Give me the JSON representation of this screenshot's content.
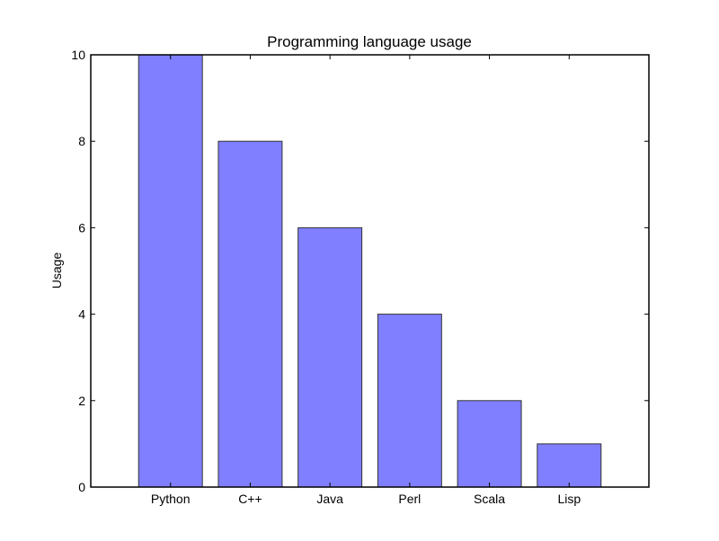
{
  "chart_data": {
    "type": "bar",
    "title": "Programming language usage",
    "xlabel": "",
    "ylabel": "Usage",
    "categories": [
      "Python",
      "C++",
      "Java",
      "Perl",
      "Scala",
      "Lisp"
    ],
    "values": [
      10,
      8,
      6,
      4,
      2,
      1
    ],
    "ylim": [
      0,
      10
    ],
    "yticks": [
      0,
      2,
      4,
      6,
      8,
      10
    ],
    "ytick_labels": [
      "0",
      "2",
      "4",
      "6",
      "8",
      "10"
    ],
    "grid": false,
    "bar_color": "#7f7fff",
    "edge_color": "#333333"
  }
}
